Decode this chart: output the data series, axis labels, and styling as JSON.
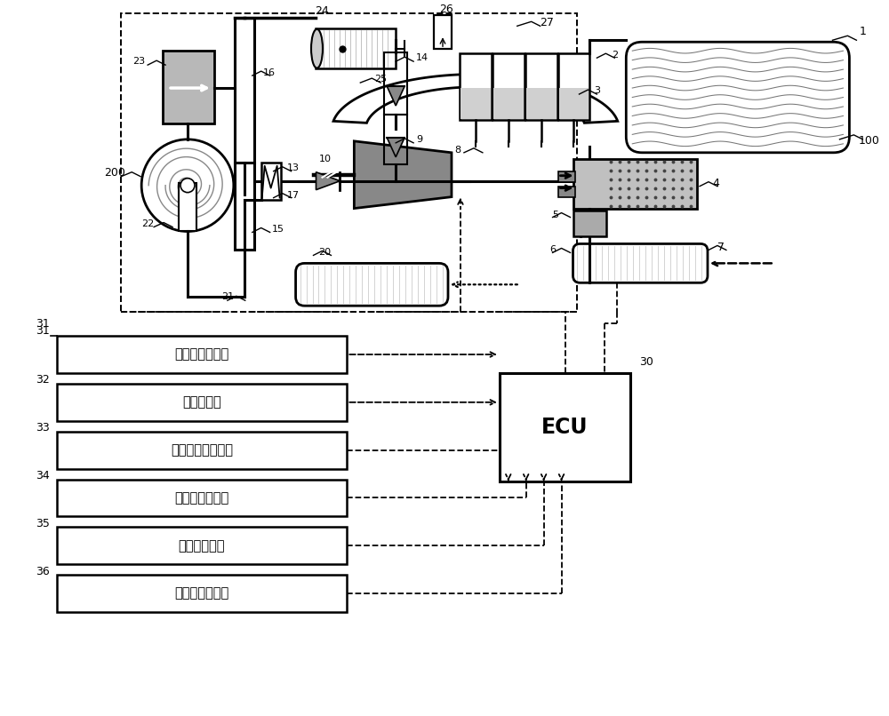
{
  "bg": "#ffffff",
  "sensors": [
    "曲轴位置传感器",
    "车速传感器",
    "冷却液水温传感器",
    "环境温度传感器",
    "上游氧传感器",
    "环境压力传感器"
  ],
  "sensor_nums": [
    "31",
    "32",
    "33",
    "34",
    "35",
    "36"
  ],
  "ecu": "ECU",
  "ecu_num": "30",
  "label_31": "31"
}
